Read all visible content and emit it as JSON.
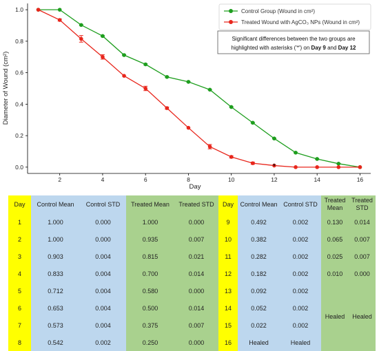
{
  "chart_data": {
    "type": "line",
    "xlabel": "Day",
    "ylabel": "Diameter of Wound (cm²)",
    "xlim": [
      0.5,
      16.5
    ],
    "ylim": [
      -0.04,
      1.04
    ],
    "x_ticks": [
      "2",
      "4",
      "6",
      "8",
      "10",
      "12",
      "14",
      "16"
    ],
    "y_ticks": [
      "0.0",
      "0.2",
      "0.4",
      "0.6",
      "0.8",
      "1.0"
    ],
    "grid": false,
    "legend_position": "top-right",
    "colors": {
      "control": "#1e9e1e",
      "treated": "#e8261c"
    },
    "series": [
      {
        "name": "Control Group (Wound in cm²)",
        "x": [
          1,
          2,
          3,
          4,
          5,
          6,
          7,
          8,
          9,
          10,
          11,
          12,
          13,
          14,
          15,
          16
        ],
        "values": [
          1.0,
          1.0,
          0.903,
          0.833,
          0.712,
          0.653,
          0.573,
          0.542,
          0.492,
          0.382,
          0.282,
          0.182,
          0.092,
          0.052,
          0.022,
          0.0
        ],
        "errors": [
          0.0,
          0.0,
          0.004,
          0.004,
          0.004,
          0.004,
          0.004,
          0.002,
          0.002,
          0.002,
          0.002,
          0.002,
          0.002,
          0.002,
          0.002,
          0.0
        ]
      },
      {
        "name": "Treated Wound with AgCO₃ NPs (Wound in cm²)",
        "x": [
          1,
          2,
          3,
          4,
          5,
          6,
          7,
          8,
          9,
          10,
          11,
          12,
          13,
          14,
          15,
          16
        ],
        "values": [
          1.0,
          0.935,
          0.815,
          0.7,
          0.58,
          0.5,
          0.375,
          0.25,
          0.13,
          0.065,
          0.025,
          0.01,
          0.0,
          0.0,
          0.0,
          0.0
        ],
        "errors": [
          0.0,
          0.007,
          0.021,
          0.014,
          0.0,
          0.014,
          0.007,
          0.0,
          0.014,
          0.007,
          0.007,
          0.0,
          0.0,
          0.0,
          0.0,
          0.0
        ]
      }
    ],
    "annotation": {
      "line1": "Significant differences between the two groups are",
      "line2_pre": "highlighted with asterisks ('*') on ",
      "day9": "Day 9",
      "and": " and ",
      "day12": "Day 12"
    },
    "asterisk": {
      "text": "*",
      "x": 12,
      "y": 0.012
    }
  },
  "table": {
    "headers": {
      "day": "Day",
      "control_mean": "Control Mean",
      "control_std": "Control STD",
      "treated_mean": "Treated Mean",
      "treated_std": "Treated STD",
      "treated_mean_r1": "Treated",
      "treated_mean_r2": "Mean",
      "treated_std_r1": "Treated",
      "treated_std_r2": "STD"
    },
    "left_rows": [
      [
        "1",
        "1.000",
        "0.000",
        "1.000",
        "0.000"
      ],
      [
        "2",
        "1.000",
        "0.000",
        "0.935",
        "0.007"
      ],
      [
        "3",
        "0.903",
        "0.004",
        "0.815",
        "0.021"
      ],
      [
        "4",
        "0.833",
        "0.004",
        "0.700",
        "0.014"
      ],
      [
        "5",
        "0.712",
        "0.004",
        "0.580",
        "0.000"
      ],
      [
        "6",
        "0.653",
        "0.004",
        "0.500",
        "0.014"
      ],
      [
        "7",
        "0.573",
        "0.004",
        "0.375",
        "0.007"
      ],
      [
        "8",
        "0.542",
        "0.002",
        "0.250",
        "0.000"
      ]
    ],
    "right_rows": [
      [
        "9",
        "0.492",
        "0.002",
        "0.130",
        "0.014"
      ],
      [
        "10",
        "0.382",
        "0.002",
        "0.065",
        "0.007"
      ],
      [
        "11",
        "0.282",
        "0.002",
        "0.025",
        "0.007"
      ],
      [
        "12",
        "0.182",
        "0.002",
        "0.010",
        "0.000"
      ],
      [
        "13",
        "0.092",
        "0.002"
      ],
      [
        "14",
        "0.052",
        "0.002"
      ],
      [
        "15",
        "0.022",
        "0.002"
      ],
      [
        "16",
        "Healed",
        "Healed"
      ]
    ],
    "healed_mean": "Healed",
    "healed_std": "Healed"
  }
}
